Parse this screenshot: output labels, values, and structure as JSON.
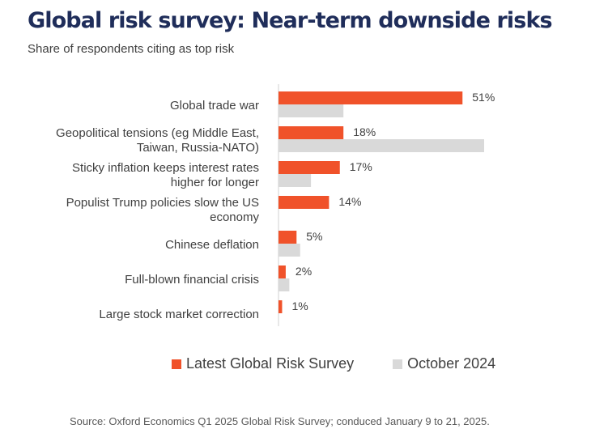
{
  "chart_data": {
    "type": "bar",
    "orientation": "horizontal",
    "title": "Global risk survey: Near-term downside risks",
    "subtitle": "Share of respondents citing as top risk",
    "categories": [
      [
        "Global trade war"
      ],
      [
        "Geopolitical tensions (eg Middle East,",
        "Taiwan, Russia-NATO)"
      ],
      [
        "Sticky inflation keeps interest rates",
        "higher for longer"
      ],
      [
        "Populist Trump policies slow the US",
        "economy"
      ],
      [
        "Chinese deflation"
      ],
      [
        "Full-blown financial crisis"
      ],
      [
        "Large stock market correction"
      ]
    ],
    "series": [
      {
        "name": "Latest Global Risk Survey",
        "color": "#f0522a",
        "values": [
          51,
          18,
          17,
          14,
          5,
          2,
          1
        ],
        "labels": [
          "51%",
          "18%",
          "17%",
          "14%",
          "5%",
          "2%",
          "1%"
        ]
      },
      {
        "name": "October 2024",
        "color": "#d9d9d9",
        "values": [
          18,
          57,
          9,
          0,
          6,
          3,
          0
        ]
      }
    ],
    "xlim": [
      0,
      57
    ],
    "grid": false,
    "legend_position": "bottom"
  },
  "source": "Source: Oxford Economics Q1 2025 Global Risk Survey; conduced January 9 to 21, 2025."
}
